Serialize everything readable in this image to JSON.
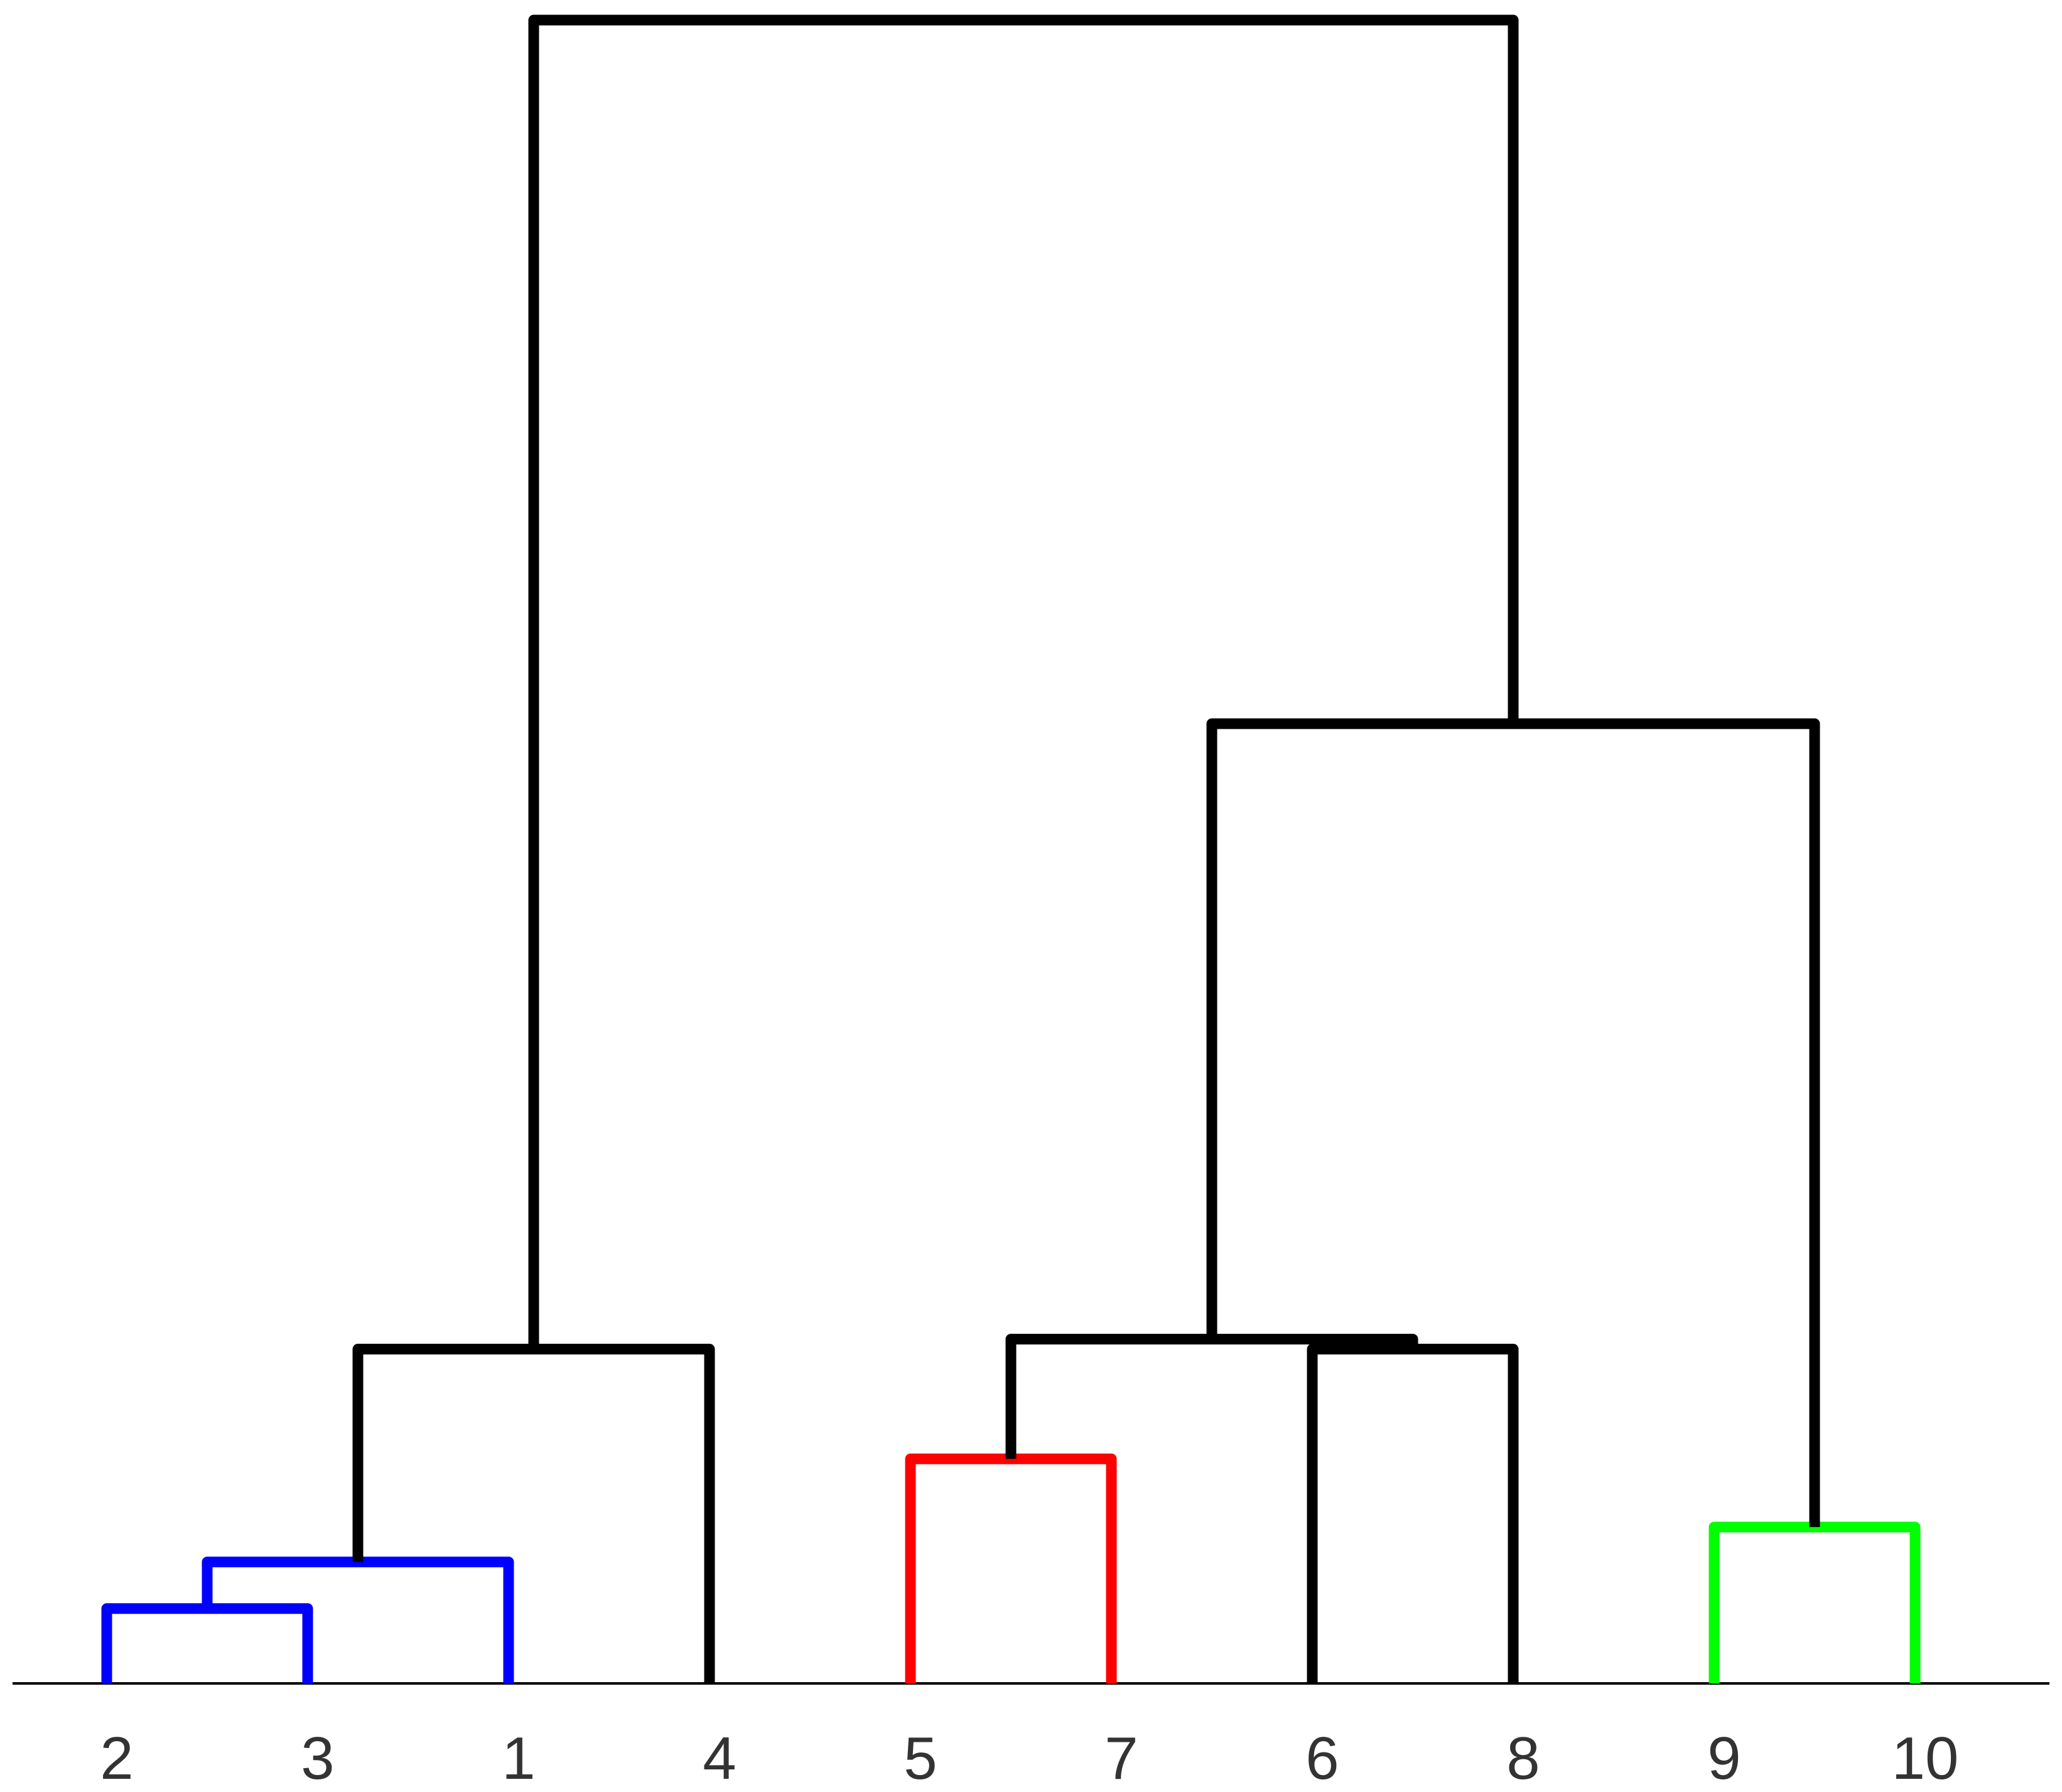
{
  "dendrogram": {
    "leaf_order": [
      "2",
      "3",
      "1",
      "4",
      "5",
      "7",
      "6",
      "8",
      "9",
      "10"
    ],
    "colors": {
      "default": "#000000",
      "cluster_blue": "#0000ff",
      "cluster_red": "#ff0000",
      "cluster_green": "#00ff00",
      "baseline": "#000000",
      "label": "#333333"
    },
    "merges": [
      {
        "id": "m1",
        "children": [
          "2",
          "3"
        ],
        "height": 0.045,
        "color": "cluster_blue"
      },
      {
        "id": "m2",
        "children": [
          "m1",
          "1"
        ],
        "height": 0.073,
        "color": "cluster_blue"
      },
      {
        "id": "m3",
        "children": [
          "m2",
          "4"
        ],
        "height": 0.201,
        "color": "default"
      },
      {
        "id": "m4",
        "children": [
          "5",
          "7"
        ],
        "height": 0.135,
        "color": "cluster_red"
      },
      {
        "id": "m5",
        "children": [
          "6",
          "8"
        ],
        "height": 0.201,
        "color": "default"
      },
      {
        "id": "m6",
        "children": [
          "m4",
          "m5"
        ],
        "height": 0.207,
        "color": "default"
      },
      {
        "id": "m7",
        "children": [
          "9",
          "10"
        ],
        "height": 0.094,
        "color": "cluster_green"
      },
      {
        "id": "m8",
        "children": [
          "m6",
          "m7"
        ],
        "height": 0.577,
        "color": "default"
      },
      {
        "id": "m9",
        "children": [
          "m3",
          "m8"
        ],
        "height": 1.0,
        "color": "default"
      }
    ]
  }
}
